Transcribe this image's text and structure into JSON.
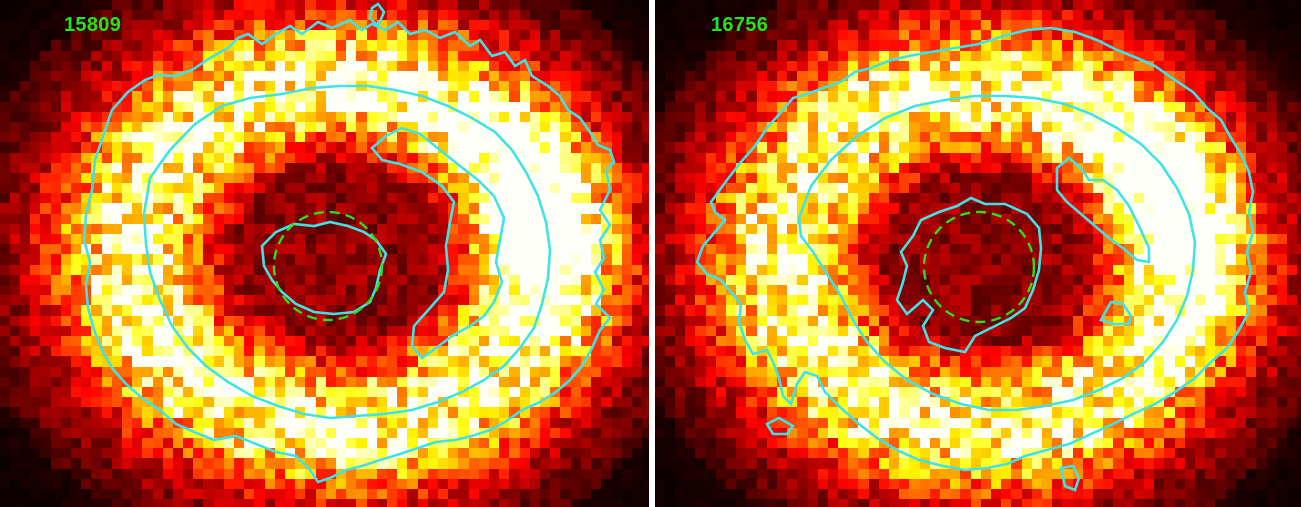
{
  "panels": [
    {
      "obsid": "15809"
    },
    {
      "obsid": "16756"
    }
  ],
  "colors": {
    "label": "#22e61c",
    "contour": "#3fe3e6",
    "aperture": "#33dd11",
    "background": "#000000"
  }
}
